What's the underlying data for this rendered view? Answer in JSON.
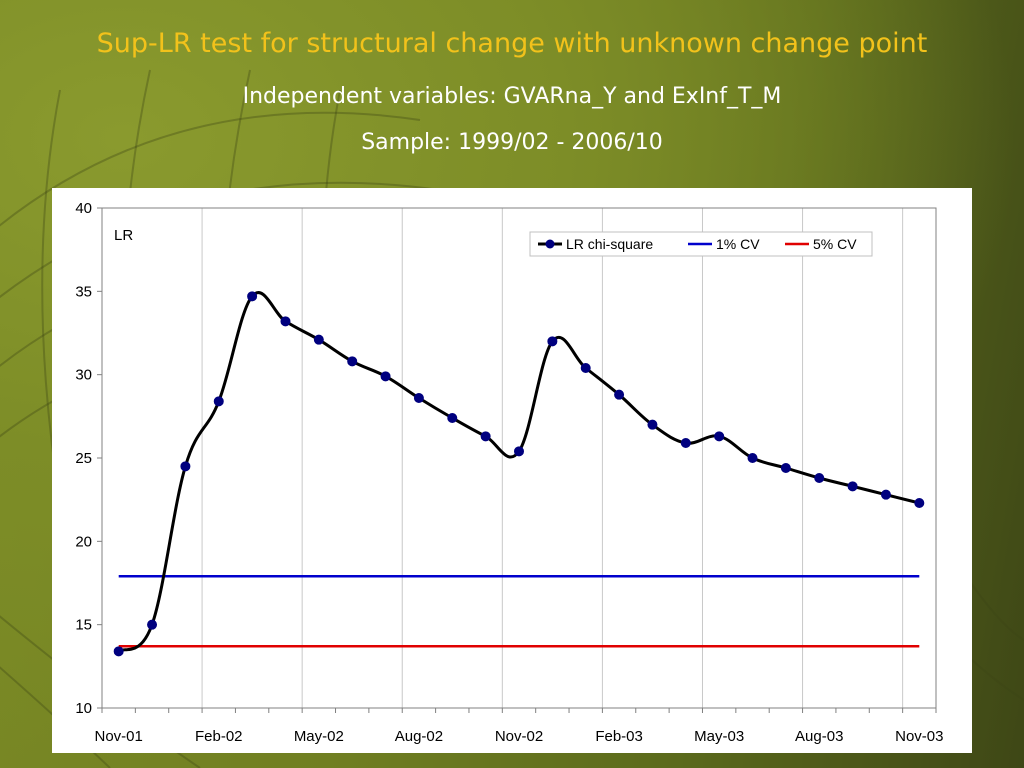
{
  "slide": {
    "title": "Sup-LR test for structural change with unknown change point",
    "subtitle_1": "Independent variables: GVARna_Y and ExInf_T_M",
    "subtitle_2": "Sample: 1999/02 - 2006/10"
  },
  "colors": {
    "title": "#f2c21b",
    "lr_series": "#000000",
    "lr_markers": "#00007f",
    "cv_1pct": "#0000cc",
    "cv_5pct": "#e00000"
  },
  "chart_data": {
    "type": "line",
    "ylabel": "LR",
    "ylim": [
      10,
      40
    ],
    "y_ticks": [
      10,
      15,
      20,
      25,
      30,
      35,
      40
    ],
    "categories": [
      "Nov-01",
      "Feb-02",
      "May-02",
      "Aug-02",
      "Nov-02",
      "Feb-03",
      "May-03",
      "Aug-03",
      "Nov-03"
    ],
    "grid": "vertical",
    "legend_position": "top-right",
    "x": [
      "Nov-01",
      "Dec-01",
      "Jan-02",
      "Feb-02",
      "Mar-02",
      "Apr-02",
      "May-02",
      "Jun-02",
      "Jul-02",
      "Aug-02",
      "Sep-02",
      "Oct-02",
      "Nov-02",
      "Dec-02",
      "Jan-03",
      "Feb-03",
      "Mar-03",
      "Apr-03",
      "May-03",
      "Jun-03",
      "Jul-03",
      "Aug-03",
      "Sep-03",
      "Oct-03",
      "Nov-03"
    ],
    "series": [
      {
        "name": "LR chi-square",
        "style": "line-markers",
        "values": [
          13.4,
          15.0,
          24.5,
          28.4,
          34.7,
          33.2,
          32.1,
          30.8,
          29.9,
          28.6,
          27.4,
          26.3,
          25.4,
          32.0,
          30.4,
          28.8,
          27.0,
          25.9,
          26.3,
          25.0,
          24.4,
          23.8,
          23.3,
          22.8,
          22.3
        ]
      },
      {
        "name": "1% CV",
        "style": "line",
        "values": [
          17.9,
          17.9,
          17.9,
          17.9,
          17.9,
          17.9,
          17.9,
          17.9,
          17.9,
          17.9,
          17.9,
          17.9,
          17.9,
          17.9,
          17.9,
          17.9,
          17.9,
          17.9,
          17.9,
          17.9,
          17.9,
          17.9,
          17.9,
          17.9,
          17.9
        ]
      },
      {
        "name": "5% CV",
        "style": "line",
        "values": [
          13.7,
          13.7,
          13.7,
          13.7,
          13.7,
          13.7,
          13.7,
          13.7,
          13.7,
          13.7,
          13.7,
          13.7,
          13.7,
          13.7,
          13.7,
          13.7,
          13.7,
          13.7,
          13.7,
          13.7,
          13.7,
          13.7,
          13.7,
          13.7,
          13.7
        ]
      }
    ]
  }
}
